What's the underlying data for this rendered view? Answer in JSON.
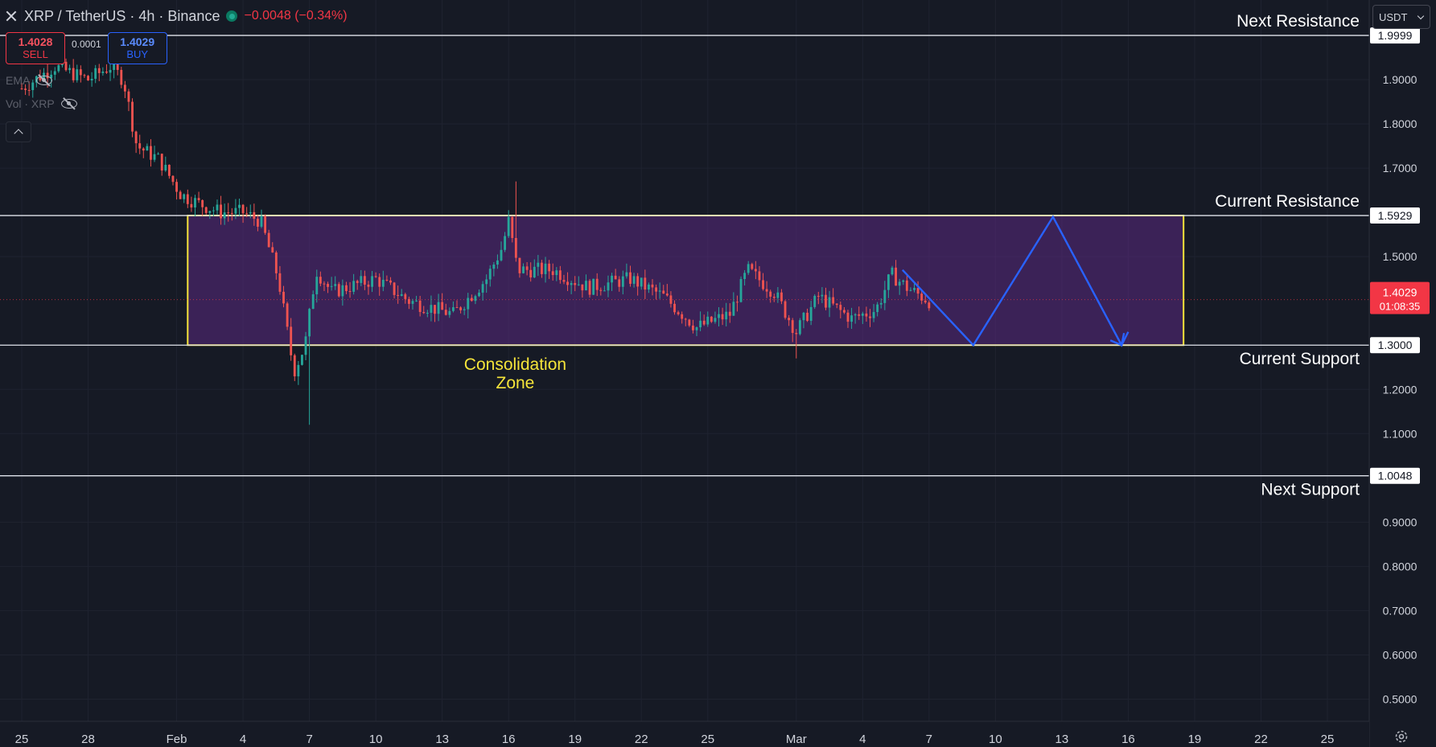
{
  "header": {
    "symbol": "XRP / TetherUS · 4h · Binance",
    "change": "−0.0048 (−0.34%)"
  },
  "trade": {
    "sell_price": "1.4028",
    "sell_label": "SELL",
    "spread": "0.0001",
    "buy_price": "1.4029",
    "buy_label": "BUY"
  },
  "indicators": [
    {
      "label": "EMA"
    },
    {
      "label": "Vol · XRP"
    }
  ],
  "currency": {
    "selected": "USDT"
  },
  "price_axis": {
    "ticks": [
      "1.9000",
      "1.8000",
      "1.7000",
      "1.5000",
      "1.2000",
      "1.1000",
      "0.9000",
      "0.8000",
      "0.7000",
      "0.6000",
      "0.5000"
    ],
    "tick_values": [
      1.9,
      1.8,
      1.7,
      1.5,
      1.2,
      1.1,
      0.9,
      0.8,
      0.7,
      0.6,
      0.5
    ]
  },
  "levels": [
    {
      "label": "Next Resistance",
      "price": 1.9999,
      "price_label": "1.9999"
    },
    {
      "label": "Current Resistance",
      "price": 1.5929,
      "price_label": "1.5929"
    },
    {
      "label": "Current Support",
      "price": 1.3,
      "price_label": "1.3000"
    },
    {
      "label": "Next Support",
      "price": 1.0048,
      "price_label": "1.0048"
    }
  ],
  "current_price": {
    "price": 1.4029,
    "price_label": "1.4029",
    "countdown": "01:08:35",
    "color": "#f23645"
  },
  "zone": {
    "title_line1": "Consolidation",
    "title_line2": "Zone",
    "from_day": 7.5,
    "to_day": 52.5,
    "top": 1.5929,
    "bottom": 1.3,
    "border_color": "#f5e43a",
    "fill_color": "#5b2a82"
  },
  "time_axis": {
    "labels": [
      "25",
      "28",
      "Feb",
      "4",
      "7",
      "10",
      "13",
      "16",
      "19",
      "22",
      "25",
      "Mar",
      "4",
      "7",
      "10",
      "13",
      "16",
      "19",
      "22",
      "25"
    ],
    "days": [
      0,
      3,
      7,
      10,
      13,
      16,
      19,
      22,
      25,
      28,
      31,
      35,
      38,
      41,
      44,
      47,
      50,
      53,
      56,
      59
    ]
  },
  "colors": {
    "up": "#26a69a",
    "down": "#ef5350",
    "projection": "#2962ff",
    "background": "#161a25"
  },
  "chart_data": {
    "type": "candlestick",
    "title": "XRP / TetherUS · 4h · Binance",
    "x_unit": "days since Jan 25",
    "ylim": [
      0.45,
      2.08
    ],
    "xlim": [
      0,
      60.5
    ],
    "grid": true,
    "trend_path": [
      {
        "day": 0,
        "price": 1.88
      },
      {
        "day": 1.5,
        "price": 1.93
      },
      {
        "day": 3,
        "price": 1.9
      },
      {
        "day": 4,
        "price": 1.93
      },
      {
        "day": 4.6,
        "price": 1.9
      },
      {
        "day": 5.2,
        "price": 1.75
      },
      {
        "day": 6.2,
        "price": 1.72
      },
      {
        "day": 7.2,
        "price": 1.64
      },
      {
        "day": 8,
        "price": 1.62
      },
      {
        "day": 9,
        "price": 1.6
      },
      {
        "day": 10,
        "price": 1.6
      },
      {
        "day": 10.8,
        "price": 1.58
      },
      {
        "day": 11.6,
        "price": 1.45
      },
      {
        "day": 12.3,
        "price": 1.24
      },
      {
        "day": 12.8,
        "price": 1.3
      },
      {
        "day": 13.3,
        "price": 1.47
      },
      {
        "day": 14,
        "price": 1.42
      },
      {
        "day": 16,
        "price": 1.45
      },
      {
        "day": 17.5,
        "price": 1.4
      },
      {
        "day": 19.5,
        "price": 1.37
      },
      {
        "day": 21,
        "price": 1.45
      },
      {
        "day": 21.7,
        "price": 1.52
      },
      {
        "day": 22,
        "price": 1.58
      },
      {
        "day": 22.4,
        "price": 1.47
      },
      {
        "day": 24,
        "price": 1.47
      },
      {
        "day": 25.6,
        "price": 1.43
      },
      {
        "day": 27.5,
        "price": 1.45
      },
      {
        "day": 29,
        "price": 1.41
      },
      {
        "day": 30.5,
        "price": 1.34
      },
      {
        "day": 32,
        "price": 1.37
      },
      {
        "day": 32.8,
        "price": 1.47
      },
      {
        "day": 34,
        "price": 1.42
      },
      {
        "day": 35,
        "price": 1.33
      },
      {
        "day": 36,
        "price": 1.41
      },
      {
        "day": 37.5,
        "price": 1.36
      },
      {
        "day": 38.6,
        "price": 1.38
      },
      {
        "day": 39.3,
        "price": 1.46
      },
      {
        "day": 40,
        "price": 1.43
      },
      {
        "day": 41,
        "price": 1.4
      }
    ],
    "wick_extremes": [
      {
        "day": 22.3,
        "high": 1.67
      },
      {
        "day": 12.5,
        "low": 1.21
      },
      {
        "day": 13.0,
        "low": 1.12
      },
      {
        "day": 35.0,
        "low": 1.27
      },
      {
        "day": 32.8,
        "high": 1.49
      },
      {
        "day": 4.2,
        "high": 1.94
      }
    ],
    "projection_path": [
      {
        "day": 39.8,
        "price": 1.47
      },
      {
        "day": 43.0,
        "price": 1.3
      },
      {
        "day": 46.6,
        "price": 1.59
      },
      {
        "day": 49.7,
        "price": 1.3
      },
      {
        "day": 50.0,
        "price": 1.33
      }
    ]
  }
}
